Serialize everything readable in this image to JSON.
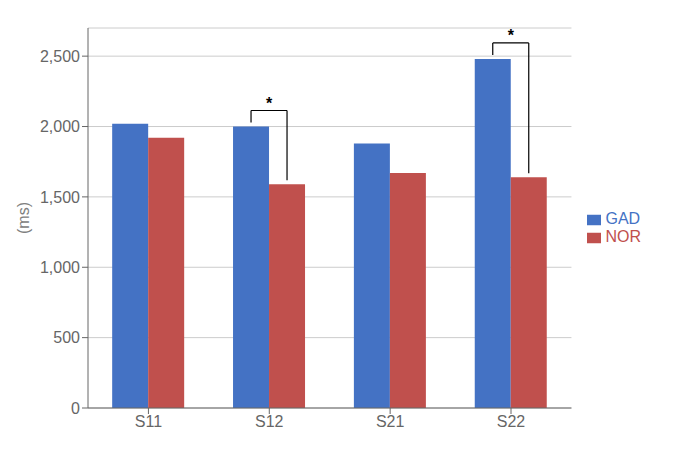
{
  "chart_data": {
    "type": "bar",
    "categories": [
      "S11",
      "S12",
      "S21",
      "S22"
    ],
    "series": [
      {
        "name": "GAD",
        "color": "#4472C4",
        "values": [
          2020,
          2000,
          1880,
          2480
        ]
      },
      {
        "name": "NOR",
        "color": "#C0504D",
        "values": [
          1920,
          1590,
          1670,
          1640
        ]
      }
    ],
    "ylabel": "(ms)",
    "ylim": [
      0,
      2700
    ],
    "yticks": [
      0,
      500,
      {
        "value": 1000,
        "label": "1,000"
      },
      {
        "value": 1500,
        "label": "1,500"
      },
      {
        "value": 2000,
        "label": "2,000"
      },
      {
        "value": 2500,
        "label": "2,500"
      }
    ],
    "grid": true,
    "legend": "right",
    "annotations": [
      {
        "category": "S12",
        "label": "*"
      },
      {
        "category": "S22",
        "label": "*"
      }
    ]
  }
}
